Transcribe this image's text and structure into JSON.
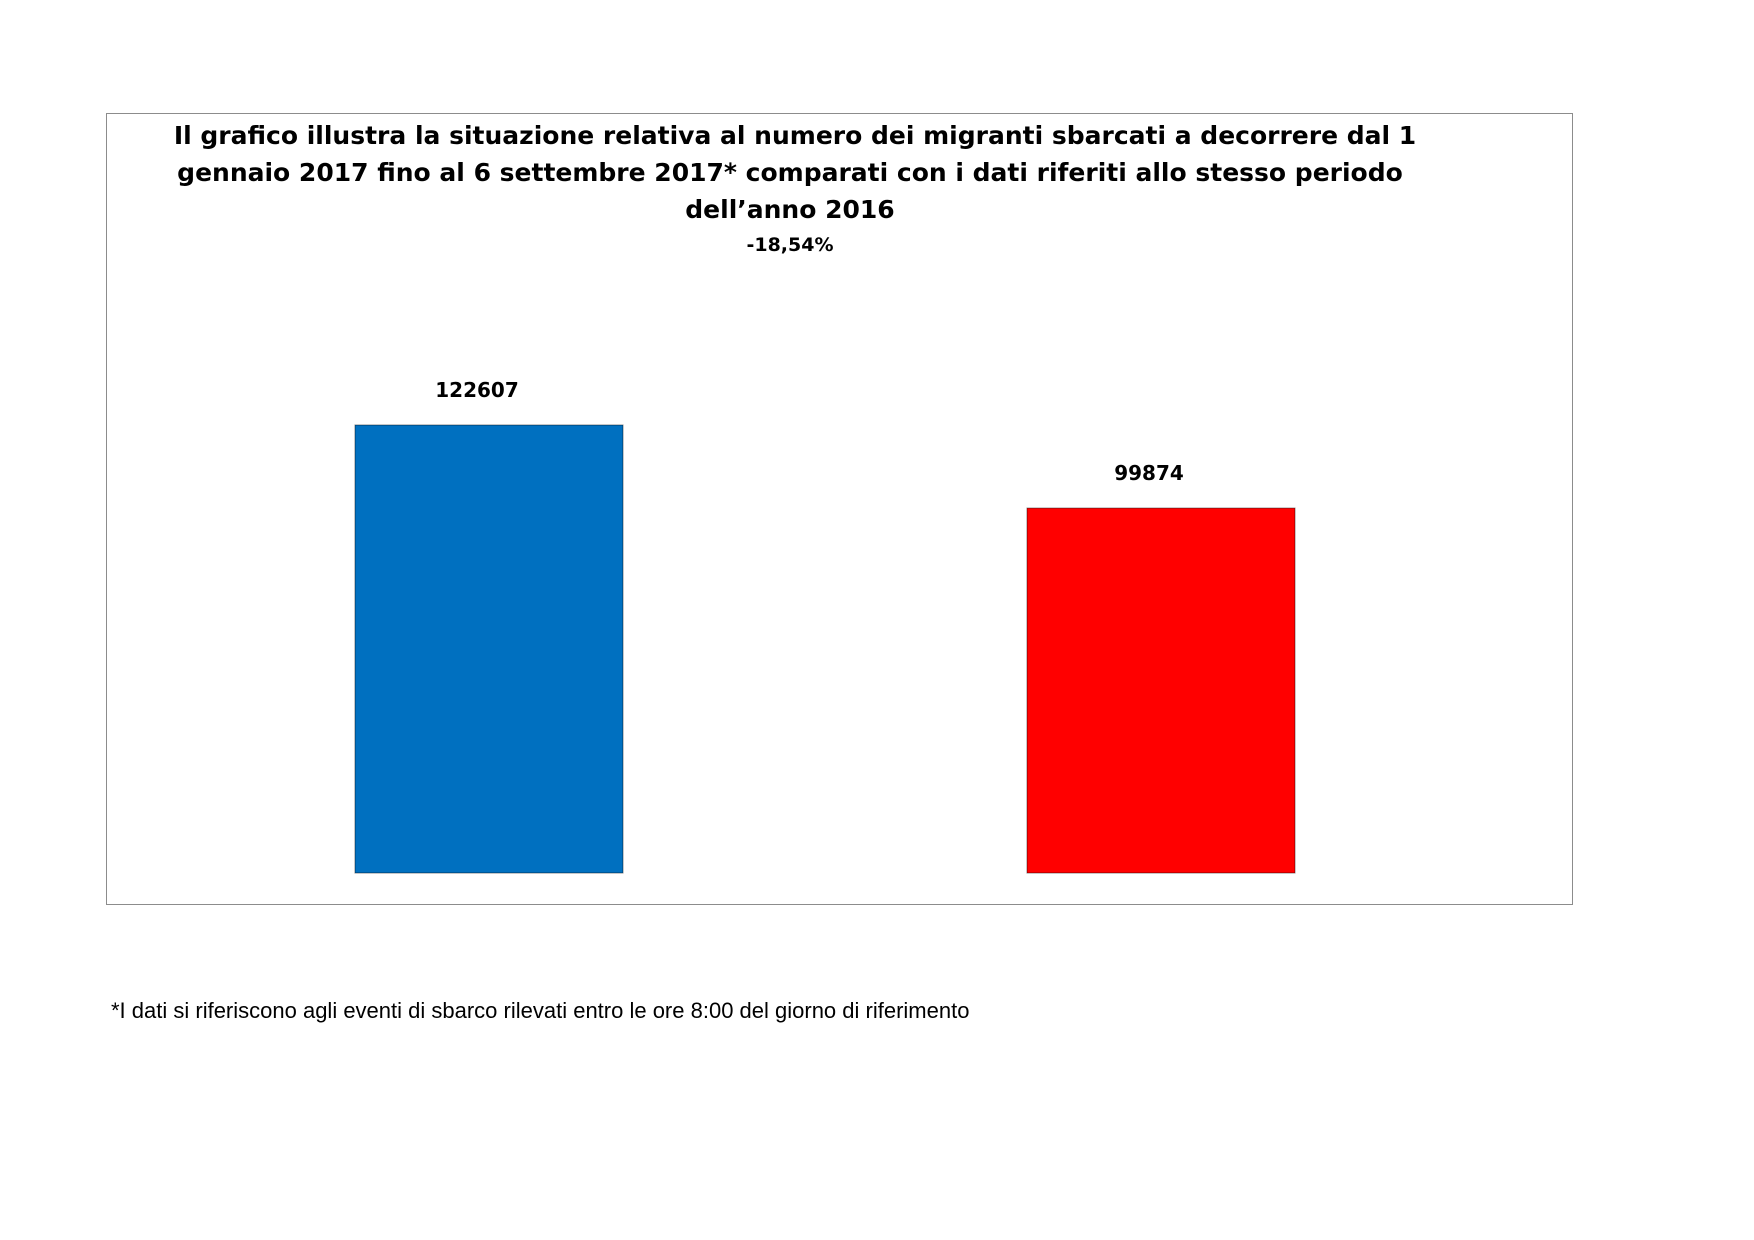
{
  "chart_data": {
    "type": "bar",
    "title_lines": [
      "Il grafico illustra la situazione relativa al numero dei migranti sbarcati a decorrere dal 1",
      "gennaio 2017 fino al 6 settembre 2017* comparati con i dati riferiti allo stesso periodo",
      "dell’anno 2016"
    ],
    "subtitle": "-18,54%",
    "xlabel": "",
    "ylabel": "",
    "ylim": [
      0,
      122607
    ],
    "grid": false,
    "legend": "none",
    "series": [
      {
        "values": [
          122607,
          99874
        ],
        "colors": [
          "#0070C0",
          "#FF0000"
        ]
      }
    ],
    "data_labels": [
      "122607",
      "99874"
    ]
  },
  "footnote": "*I dati si riferiscono agli eventi di sbarco rilevati entro le ore 8:00 del giorno di riferimento"
}
